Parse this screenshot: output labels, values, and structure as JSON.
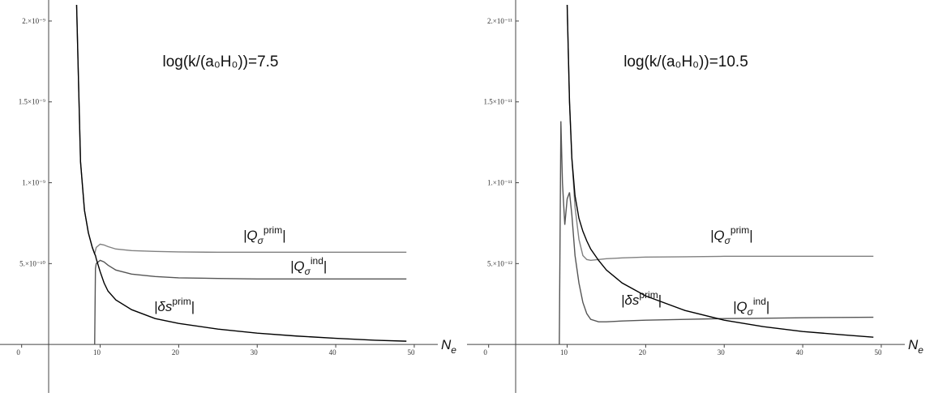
{
  "chart_data": [
    {
      "type": "line",
      "title": "log(k/(a₀H₀))=7.5",
      "x_label": {
        "base": "N",
        "sub": "e"
      },
      "xlim": [
        -1,
        53
      ],
      "xticks": [
        0,
        10,
        20,
        30,
        40,
        50
      ],
      "ylim": [
        -3e-10,
        2.13e-09
      ],
      "yticks": [
        {
          "value": 5e-10,
          "label": "5.×10⁻¹⁰"
        },
        {
          "value": 1e-09,
          "label": "1.×10⁻⁹"
        },
        {
          "value": 1.5e-09,
          "label": "1.5×10⁻⁹"
        },
        {
          "value": 2e-09,
          "label": "2.×10⁻⁹"
        }
      ],
      "x": [
        7,
        7.5,
        8,
        8.5,
        9,
        9.3,
        9.4,
        9.5,
        10,
        10.5,
        11,
        12,
        14,
        17,
        20,
        25,
        30,
        35,
        40,
        45,
        49
      ],
      "series": [
        {
          "label": {
            "base": "|Q",
            "sub": "σ",
            "sup": "prim",
            "end": "|"
          },
          "color": "#808080",
          "values": [
            2.1e-09,
            1.13e-09,
            8.3e-10,
            6.9e-10,
            6e-10,
            5.6e-10,
            5.8e-10,
            6e-10,
            6.2e-10,
            6.15e-10,
            6.05e-10,
            5.9e-10,
            5.8e-10,
            5.75e-10,
            5.72e-10,
            5.7e-10,
            5.7e-10,
            5.7e-10,
            5.7e-10,
            5.7e-10,
            5.7e-10
          ]
        },
        {
          "label": {
            "base": "|Q",
            "sub": "σ",
            "sup": "ind",
            "end": "|"
          },
          "color": "#555555",
          "values": [
            null,
            null,
            null,
            null,
            null,
            0,
            4.7e-10,
            5e-10,
            5.2e-10,
            5.1e-10,
            4.9e-10,
            4.6e-10,
            4.35e-10,
            4.2e-10,
            4.12e-10,
            4.08e-10,
            4.05e-10,
            4.05e-10,
            4.05e-10,
            4.05e-10,
            4.05e-10
          ]
        },
        {
          "label": {
            "base": "|δs",
            "sup": "prim",
            "end": "|"
          },
          "color": "#000000",
          "values": [
            2.1e-09,
            1.13e-09,
            8.3e-10,
            6.9e-10,
            6e-10,
            5.6e-10,
            5.5e-10,
            5.3e-10,
            4.5e-10,
            3.8e-10,
            3.3e-10,
            2.75e-10,
            2.15e-10,
            1.6e-10,
            1.3e-10,
            9.5e-11,
            7e-11,
            5.2e-11,
            3.8e-11,
            2.6e-11,
            2e-11
          ]
        }
      ]
    },
    {
      "type": "line",
      "title": "log(k/(a₀H₀))=10.5",
      "x_label": {
        "base": "N",
        "sub": "e"
      },
      "xlim": [
        -1,
        53
      ],
      "xticks": [
        0,
        10,
        20,
        30,
        40,
        50
      ],
      "ylim": [
        -3e-12,
        2.13e-11
      ],
      "yticks": [
        {
          "value": 5e-12,
          "label": "5.×10⁻¹²"
        },
        {
          "value": 1e-11,
          "label": "1.×10⁻¹¹"
        },
        {
          "value": 1.5e-11,
          "label": "1.5×10⁻¹¹"
        },
        {
          "value": 2e-11,
          "label": "2.×10⁻¹¹"
        }
      ],
      "x": [
        9.0,
        9.2,
        9.4,
        9.7,
        10.0,
        10.3,
        10.6,
        11,
        11.5,
        12,
        12.5,
        13,
        14,
        15,
        17,
        20,
        25,
        30,
        35,
        40,
        45,
        49
      ],
      "series": [
        {
          "label": {
            "base": "|Q",
            "sub": "σ",
            "sup": "prim",
            "end": "|"
          },
          "color": "#808080",
          "values": [
            null,
            null,
            null,
            null,
            2.1e-11,
            1.5e-11,
            1.15e-11,
            8.5e-12,
            6.5e-12,
            5.5e-12,
            5.25e-12,
            5.2e-12,
            5.25e-12,
            5.3e-12,
            5.35e-12,
            5.4e-12,
            5.42e-12,
            5.45e-12,
            5.45e-12,
            5.45e-12,
            5.45e-12,
            5.45e-12
          ]
        },
        {
          "label": {
            "base": "|Q",
            "sub": "σ",
            "sup": "ind",
            "end": "|"
          },
          "color": "#555555",
          "values": [
            0,
            1.38e-11,
            1e-11,
            7.4e-12,
            9e-12,
            9.4e-12,
            8e-12,
            5.5e-12,
            3.8e-12,
            2.6e-12,
            1.9e-12,
            1.55e-12,
            1.4e-12,
            1.4e-12,
            1.45e-12,
            1.5e-12,
            1.55e-12,
            1.6e-12,
            1.62e-12,
            1.65e-12,
            1.67e-12,
            1.68e-12
          ]
        },
        {
          "label": {
            "base": "|δs",
            "sup": "prim",
            "end": "|"
          },
          "color": "#000000",
          "values": [
            null,
            null,
            null,
            null,
            2.1e-11,
            1.5e-11,
            1.15e-11,
            9.2e-12,
            7.8e-12,
            7e-12,
            6.4e-12,
            5.9e-12,
            5.2e-12,
            4.6e-12,
            3.8e-12,
            3e-12,
            2.1e-12,
            1.5e-12,
            1.1e-12,
            8e-13,
            6e-13,
            4.5e-13
          ]
        }
      ]
    }
  ]
}
